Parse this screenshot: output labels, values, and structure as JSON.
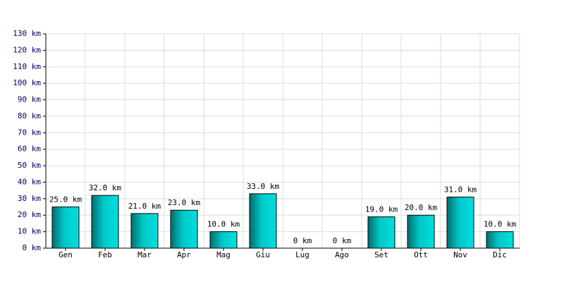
{
  "chart_data": {
    "type": "bar",
    "categories": [
      "Gen",
      "Feb",
      "Mar",
      "Apr",
      "Mag",
      "Giu",
      "Lug",
      "Ago",
      "Set",
      "Ott",
      "Nov",
      "Dic"
    ],
    "values": [
      25,
      32,
      21,
      23,
      10,
      33,
      0,
      0,
      19,
      20,
      31,
      10
    ],
    "value_labels": [
      "25.0 km",
      "32.0 km",
      "21.0 km",
      "23.0 km",
      "10.0 km",
      "33.0 km",
      "0 km",
      "0 km",
      "19.0 km",
      "20.0 km",
      "31.0 km",
      "10.0 km"
    ],
    "color": "#00c8c8",
    "ylim": [
      0,
      130
    ],
    "yticks": [
      {
        "value": 0,
        "label": "0 km"
      },
      {
        "value": 10,
        "label": "10 km"
      },
      {
        "value": 20,
        "label": "20 km"
      },
      {
        "value": 30,
        "label": "30 km"
      },
      {
        "value": 40,
        "label": "40 km"
      },
      {
        "value": 50,
        "label": "50 km"
      },
      {
        "value": 60,
        "label": "60 km"
      },
      {
        "value": 70,
        "label": "70 km"
      },
      {
        "value": 80,
        "label": "80 km"
      },
      {
        "value": 90,
        "label": "90 km"
      },
      {
        "value": 100,
        "label": "100 km"
      },
      {
        "value": 110,
        "label": "110 km"
      },
      {
        "value": 120,
        "label": "120 km"
      },
      {
        "value": 130,
        "label": "130 km"
      }
    ],
    "grid": true
  }
}
